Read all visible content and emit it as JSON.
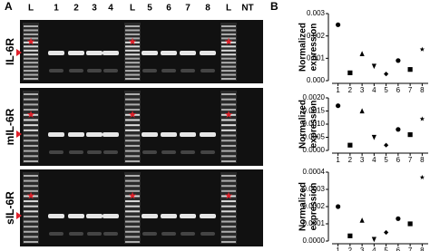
{
  "panel_labels": {
    "a": "A",
    "b": "B"
  },
  "gel": {
    "lanes": [
      "L",
      "1",
      "2",
      "3",
      "4",
      "L",
      "5",
      "6",
      "7",
      "8",
      "L",
      "NT"
    ],
    "rows": [
      "IL-6R",
      "mIL-6R",
      "sIL-6R"
    ]
  },
  "chart_data": [
    {
      "type": "scatter",
      "y_label": [
        "Normalized",
        "expression"
      ],
      "color": "#000000",
      "markers": [
        "circle",
        "square",
        "triangle",
        "triangle-down",
        "diamond",
        "circle",
        "square",
        "star"
      ],
      "categories": [
        "1",
        "2",
        "3",
        "4",
        "5",
        "6",
        "7",
        "8"
      ],
      "values": [
        0.0025,
        0.00035,
        0.0012,
        0.00065,
        0.0003,
        0.0009,
        0.0005,
        0.0014
      ],
      "ylim": [
        0,
        0.003
      ],
      "yticks": [
        {
          "value": 0,
          "label": "0.000"
        },
        0.001,
        0.002,
        0.003
      ]
    },
    {
      "type": "scatter",
      "y_label": [
        "Normalized",
        "expression"
      ],
      "color": "#000000",
      "markers": [
        "circle",
        "square",
        "triangle",
        "triangle-down",
        "diamond",
        "circle",
        "square",
        "star"
      ],
      "categories": [
        "1",
        "2",
        "3",
        "4",
        "5",
        "6",
        "7",
        "8"
      ],
      "values": [
        0.0017,
        0.0002,
        0.0015,
        0.0005,
        0.0002,
        0.0008,
        0.0006,
        0.0012
      ],
      "ylim": [
        0,
        0.002
      ],
      "yticks": [
        {
          "value": 0,
          "label": "0.0000"
        },
        0.0005,
        {
          "value": 0.001,
          "label": "0.0010"
        },
        0.0015,
        {
          "value": 0.002,
          "label": "0.0020"
        }
      ]
    },
    {
      "type": "scatter",
      "y_label": [
        "Normalized",
        "expression"
      ],
      "color": "#000000",
      "markers": [
        "circle",
        "square",
        "triangle",
        "triangle-down",
        "diamond",
        "circle",
        "square",
        "star"
      ],
      "categories": [
        "1",
        "2",
        "3",
        "4",
        "5",
        "6",
        "7",
        "8"
      ],
      "values": [
        0.0002,
        3e-05,
        0.00012,
        1e-05,
        5e-05,
        0.00013,
        0.0001,
        0.00037
      ],
      "ylim": [
        0,
        0.0004
      ],
      "yticks": [
        {
          "value": 0,
          "label": "0.0000"
        },
        0.0001,
        0.0002,
        0.0003,
        0.0004
      ]
    }
  ]
}
